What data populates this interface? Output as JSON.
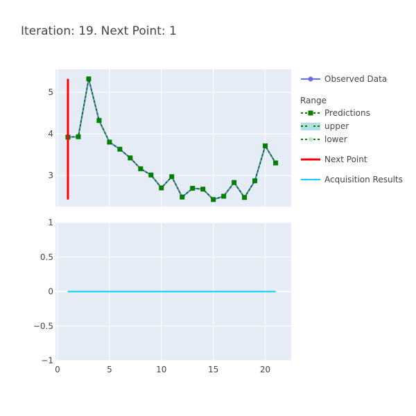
{
  "title": "Iteration: 19. Next Point: 1",
  "colors": {
    "observed": "#636efa",
    "predictions": "#007f00",
    "range_fill": "#b0e0e6",
    "next_point": "#ff0000",
    "acquisition": "#00cfff",
    "plot_bg": "#e5ecf6",
    "grid": "#ffffff"
  },
  "legend": {
    "observed": "Observed Data",
    "range_title": "Range",
    "predictions": "Predictions",
    "upper": "upper",
    "lower": "lower",
    "next_point": "Next Point",
    "acquisition": "Acquisition Results"
  },
  "chart_data": [
    {
      "type": "line",
      "panel": "top",
      "xlim": [
        -0.2,
        22.5
      ],
      "ylim": [
        2.25,
        5.55
      ],
      "xticks": [
        0,
        5,
        10,
        15,
        20
      ],
      "yticks": [
        3,
        4,
        5
      ],
      "xtick_labels_shown": false,
      "series": [
        {
          "name": "Observed Data",
          "x": [
            1,
            2,
            3,
            4,
            5,
            6,
            7,
            8,
            9,
            10,
            11,
            12,
            13,
            14,
            15,
            16,
            17,
            18,
            19,
            20,
            21
          ],
          "y": [
            3.92,
            3.93,
            5.32,
            4.32,
            3.8,
            3.63,
            3.42,
            3.16,
            3.01,
            2.7,
            2.97,
            2.48,
            2.69,
            2.67,
            2.42,
            2.5,
            2.83,
            2.47,
            2.87,
            3.71,
            3.3
          ]
        },
        {
          "name": "Predictions",
          "x": [
            1,
            2,
            3,
            4,
            5,
            6,
            7,
            8,
            9,
            10,
            11,
            12,
            13,
            14,
            15,
            16,
            17,
            18,
            19,
            20,
            21
          ],
          "y": [
            3.92,
            3.93,
            5.32,
            4.32,
            3.8,
            3.63,
            3.42,
            3.16,
            3.01,
            2.7,
            2.97,
            2.48,
            2.69,
            2.67,
            2.42,
            2.5,
            2.83,
            2.47,
            2.87,
            3.71,
            3.3
          ]
        },
        {
          "name": "upper",
          "x": [
            1,
            2,
            3,
            4,
            5,
            6,
            7,
            8,
            9,
            10,
            11,
            12,
            13,
            14,
            15,
            16,
            17,
            18,
            19,
            20,
            21
          ],
          "y": [
            3.92,
            3.93,
            5.32,
            4.32,
            3.8,
            3.63,
            3.42,
            3.16,
            3.01,
            2.7,
            2.97,
            2.48,
            2.69,
            2.67,
            2.42,
            2.5,
            2.83,
            2.47,
            2.87,
            3.71,
            3.3
          ]
        },
        {
          "name": "lower",
          "x": [
            1,
            2,
            3,
            4,
            5,
            6,
            7,
            8,
            9,
            10,
            11,
            12,
            13,
            14,
            15,
            16,
            17,
            18,
            19,
            20,
            21
          ],
          "y": [
            3.92,
            3.93,
            5.32,
            4.32,
            3.8,
            3.63,
            3.42,
            3.16,
            3.01,
            2.7,
            2.97,
            2.48,
            2.69,
            2.67,
            2.42,
            2.5,
            2.83,
            2.47,
            2.87,
            3.71,
            3.3
          ]
        },
        {
          "name": "Next Point",
          "x": [
            1,
            1
          ],
          "y": [
            2.42,
            5.32
          ]
        }
      ]
    },
    {
      "type": "line",
      "panel": "bottom",
      "xlim": [
        -0.2,
        22.5
      ],
      "ylim": [
        -1,
        1
      ],
      "xticks": [
        0,
        5,
        10,
        15,
        20
      ],
      "yticks": [
        -1,
        -0.5,
        0,
        0.5,
        1
      ],
      "xtick_labels": [
        "0",
        "5",
        "10",
        "15",
        "20"
      ],
      "ytick_labels": [
        "−1",
        "−0.5",
        "0",
        "0.5",
        "1"
      ],
      "series": [
        {
          "name": "Acquisition Results",
          "x": [
            1,
            21
          ],
          "y": [
            0,
            0
          ]
        }
      ]
    }
  ]
}
